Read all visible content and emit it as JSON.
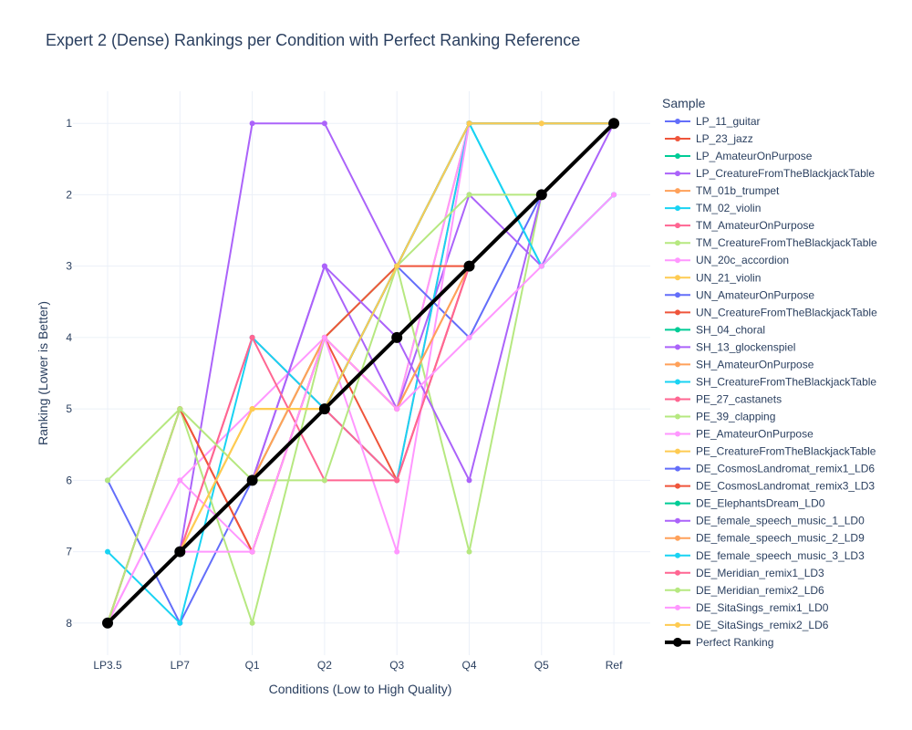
{
  "chart_data": {
    "type": "line",
    "title": "Expert 2 (Dense) Rankings per Condition with Perfect Ranking Reference",
    "xlabel": "Conditions (Low to High Quality)",
    "ylabel": "Ranking (Lower is Better)",
    "categories": [
      "LP3.5",
      "LP7",
      "Q1",
      "Q2",
      "Q3",
      "Q4",
      "Q5",
      "Ref"
    ],
    "y_ticks": [
      "1",
      "2",
      "3",
      "4",
      "5",
      "6",
      "7",
      "8"
    ],
    "y_range": [
      8.45,
      0.55
    ],
    "y_reversed": true,
    "grid": true,
    "legend_title": "Sample",
    "legend_position": "right",
    "series": [
      {
        "name": "LP_11_guitar",
        "color": "#636efa",
        "values": [
          8,
          7,
          6,
          5,
          3,
          1,
          null,
          1
        ]
      },
      {
        "name": "LP_23_jazz",
        "color": "#EF553B",
        "values": [
          8,
          7,
          6,
          5,
          3,
          1,
          null,
          1
        ]
      },
      {
        "name": "LP_AmateurOnPurpose",
        "color": "#00cc96",
        "values": [
          8,
          7,
          6,
          5,
          3,
          1,
          null,
          1
        ]
      },
      {
        "name": "LP_CreatureFromTheBlackjackTable",
        "color": "#ab63fa",
        "values": [
          8,
          7,
          1,
          1,
          3,
          1,
          null,
          1
        ]
      },
      {
        "name": "TM_01b_trumpet",
        "color": "#FFA15A",
        "values": [
          8,
          7,
          6,
          4,
          5,
          1,
          null,
          1
        ]
      },
      {
        "name": "TM_02_violin",
        "color": "#19d3f3",
        "values": [
          8,
          7,
          6,
          4,
          3,
          1,
          null,
          1
        ]
      },
      {
        "name": "TM_AmateurOnPurpose",
        "color": "#FF6692",
        "values": [
          8,
          7,
          4,
          5,
          6,
          1,
          null,
          1
        ]
      },
      {
        "name": "TM_CreatureFromTheBlackjackTable",
        "color": "#B6E880",
        "values": [
          8,
          7,
          6,
          4,
          3,
          1,
          null,
          1
        ]
      },
      {
        "name": "UN_20c_accordion",
        "color": "#FF97FF",
        "values": [
          8,
          6,
          5,
          4,
          5,
          1,
          null,
          1
        ]
      },
      {
        "name": "UN_21_violin",
        "color": "#FECB52",
        "values": [
          8,
          7,
          5,
          5,
          3,
          1,
          null,
          1
        ]
      },
      {
        "name": "UN_AmateurOnPurpose",
        "color": "#636efa",
        "values": [
          6,
          8,
          6,
          5,
          3,
          4,
          2,
          1
        ]
      },
      {
        "name": "UN_CreatureFromTheBlackjackTable",
        "color": "#EF553B",
        "values": [
          8,
          5,
          7,
          4,
          6,
          3,
          null,
          1
        ]
      },
      {
        "name": "SH_04_choral",
        "color": "#00cc96",
        "values": [
          8,
          7,
          6,
          5,
          3,
          1,
          null,
          1
        ]
      },
      {
        "name": "SH_13_glockenspiel",
        "color": "#ab63fa",
        "values": [
          8,
          7,
          6,
          3,
          5,
          2,
          3,
          1
        ]
      },
      {
        "name": "SH_AmateurOnPurpose",
        "color": "#FFA15A",
        "values": [
          8,
          7,
          6,
          4,
          5,
          3,
          null,
          1
        ]
      },
      {
        "name": "SH_CreatureFromTheBlackjackTable",
        "color": "#19d3f3",
        "values": [
          7,
          8,
          4,
          5,
          6,
          1,
          3,
          2
        ]
      },
      {
        "name": "PE_27_castanets",
        "color": "#FF6692",
        "values": [
          8,
          7,
          6,
          5,
          6,
          3,
          null,
          1
        ]
      },
      {
        "name": "PE_39_clapping",
        "color": "#B6E880",
        "values": [
          6,
          5,
          8,
          4,
          3,
          7,
          2,
          1
        ]
      },
      {
        "name": "PE_AmateurOnPurpose",
        "color": "#FF97FF",
        "values": [
          8,
          6,
          7,
          4,
          7,
          1,
          null,
          1
        ]
      },
      {
        "name": "PE_CreatureFromTheBlackjackTable",
        "color": "#FECB52",
        "values": [
          8,
          7,
          5,
          5,
          3,
          1,
          1,
          1
        ]
      },
      {
        "name": "DE_CosmosLandromat_remix1_LD6",
        "color": "#636efa",
        "values": [
          8,
          7,
          6,
          5,
          3,
          1,
          null,
          1
        ]
      },
      {
        "name": "DE_CosmosLandromat_remix3_LD3",
        "color": "#EF553B",
        "values": [
          8,
          5,
          7,
          4,
          3,
          3,
          null,
          1
        ]
      },
      {
        "name": "DE_ElephantsDream_LD0",
        "color": "#00cc96",
        "values": [
          8,
          7,
          6,
          5,
          3,
          1,
          null,
          1
        ]
      },
      {
        "name": "DE_female_speech_music_1_LD0",
        "color": "#ab63fa",
        "values": [
          8,
          7,
          6,
          3,
          4,
          6,
          2,
          1
        ]
      },
      {
        "name": "DE_female_speech_music_2_LD9",
        "color": "#FFA15A",
        "values": [
          8,
          7,
          6,
          4,
          5,
          3,
          null,
          1
        ]
      },
      {
        "name": "DE_female_speech_music_3_LD3",
        "color": "#19d3f3",
        "values": [
          8,
          7,
          6,
          5,
          3,
          1,
          3,
          2
        ]
      },
      {
        "name": "DE_Meridian_remix1_LD3",
        "color": "#FF6692",
        "values": [
          8,
          7,
          4,
          6,
          6,
          3,
          null,
          1
        ]
      },
      {
        "name": "DE_Meridian_remix2_LD6",
        "color": "#B6E880",
        "values": [
          8,
          5,
          6,
          6,
          3,
          2,
          2,
          1
        ]
      },
      {
        "name": "DE_SitaSings_remix1_LD0",
        "color": "#FF97FF",
        "values": [
          8,
          7,
          7,
          4,
          5,
          4,
          3,
          2
        ]
      },
      {
        "name": "DE_SitaSings_remix2_LD6",
        "color": "#FECB52",
        "values": [
          8,
          7,
          5,
          5,
          3,
          1,
          1,
          1
        ]
      },
      {
        "name": "Perfect Ranking",
        "color": "#000000",
        "values": [
          8,
          7,
          6,
          5,
          4,
          3,
          2,
          1
        ],
        "bold": true
      }
    ]
  }
}
